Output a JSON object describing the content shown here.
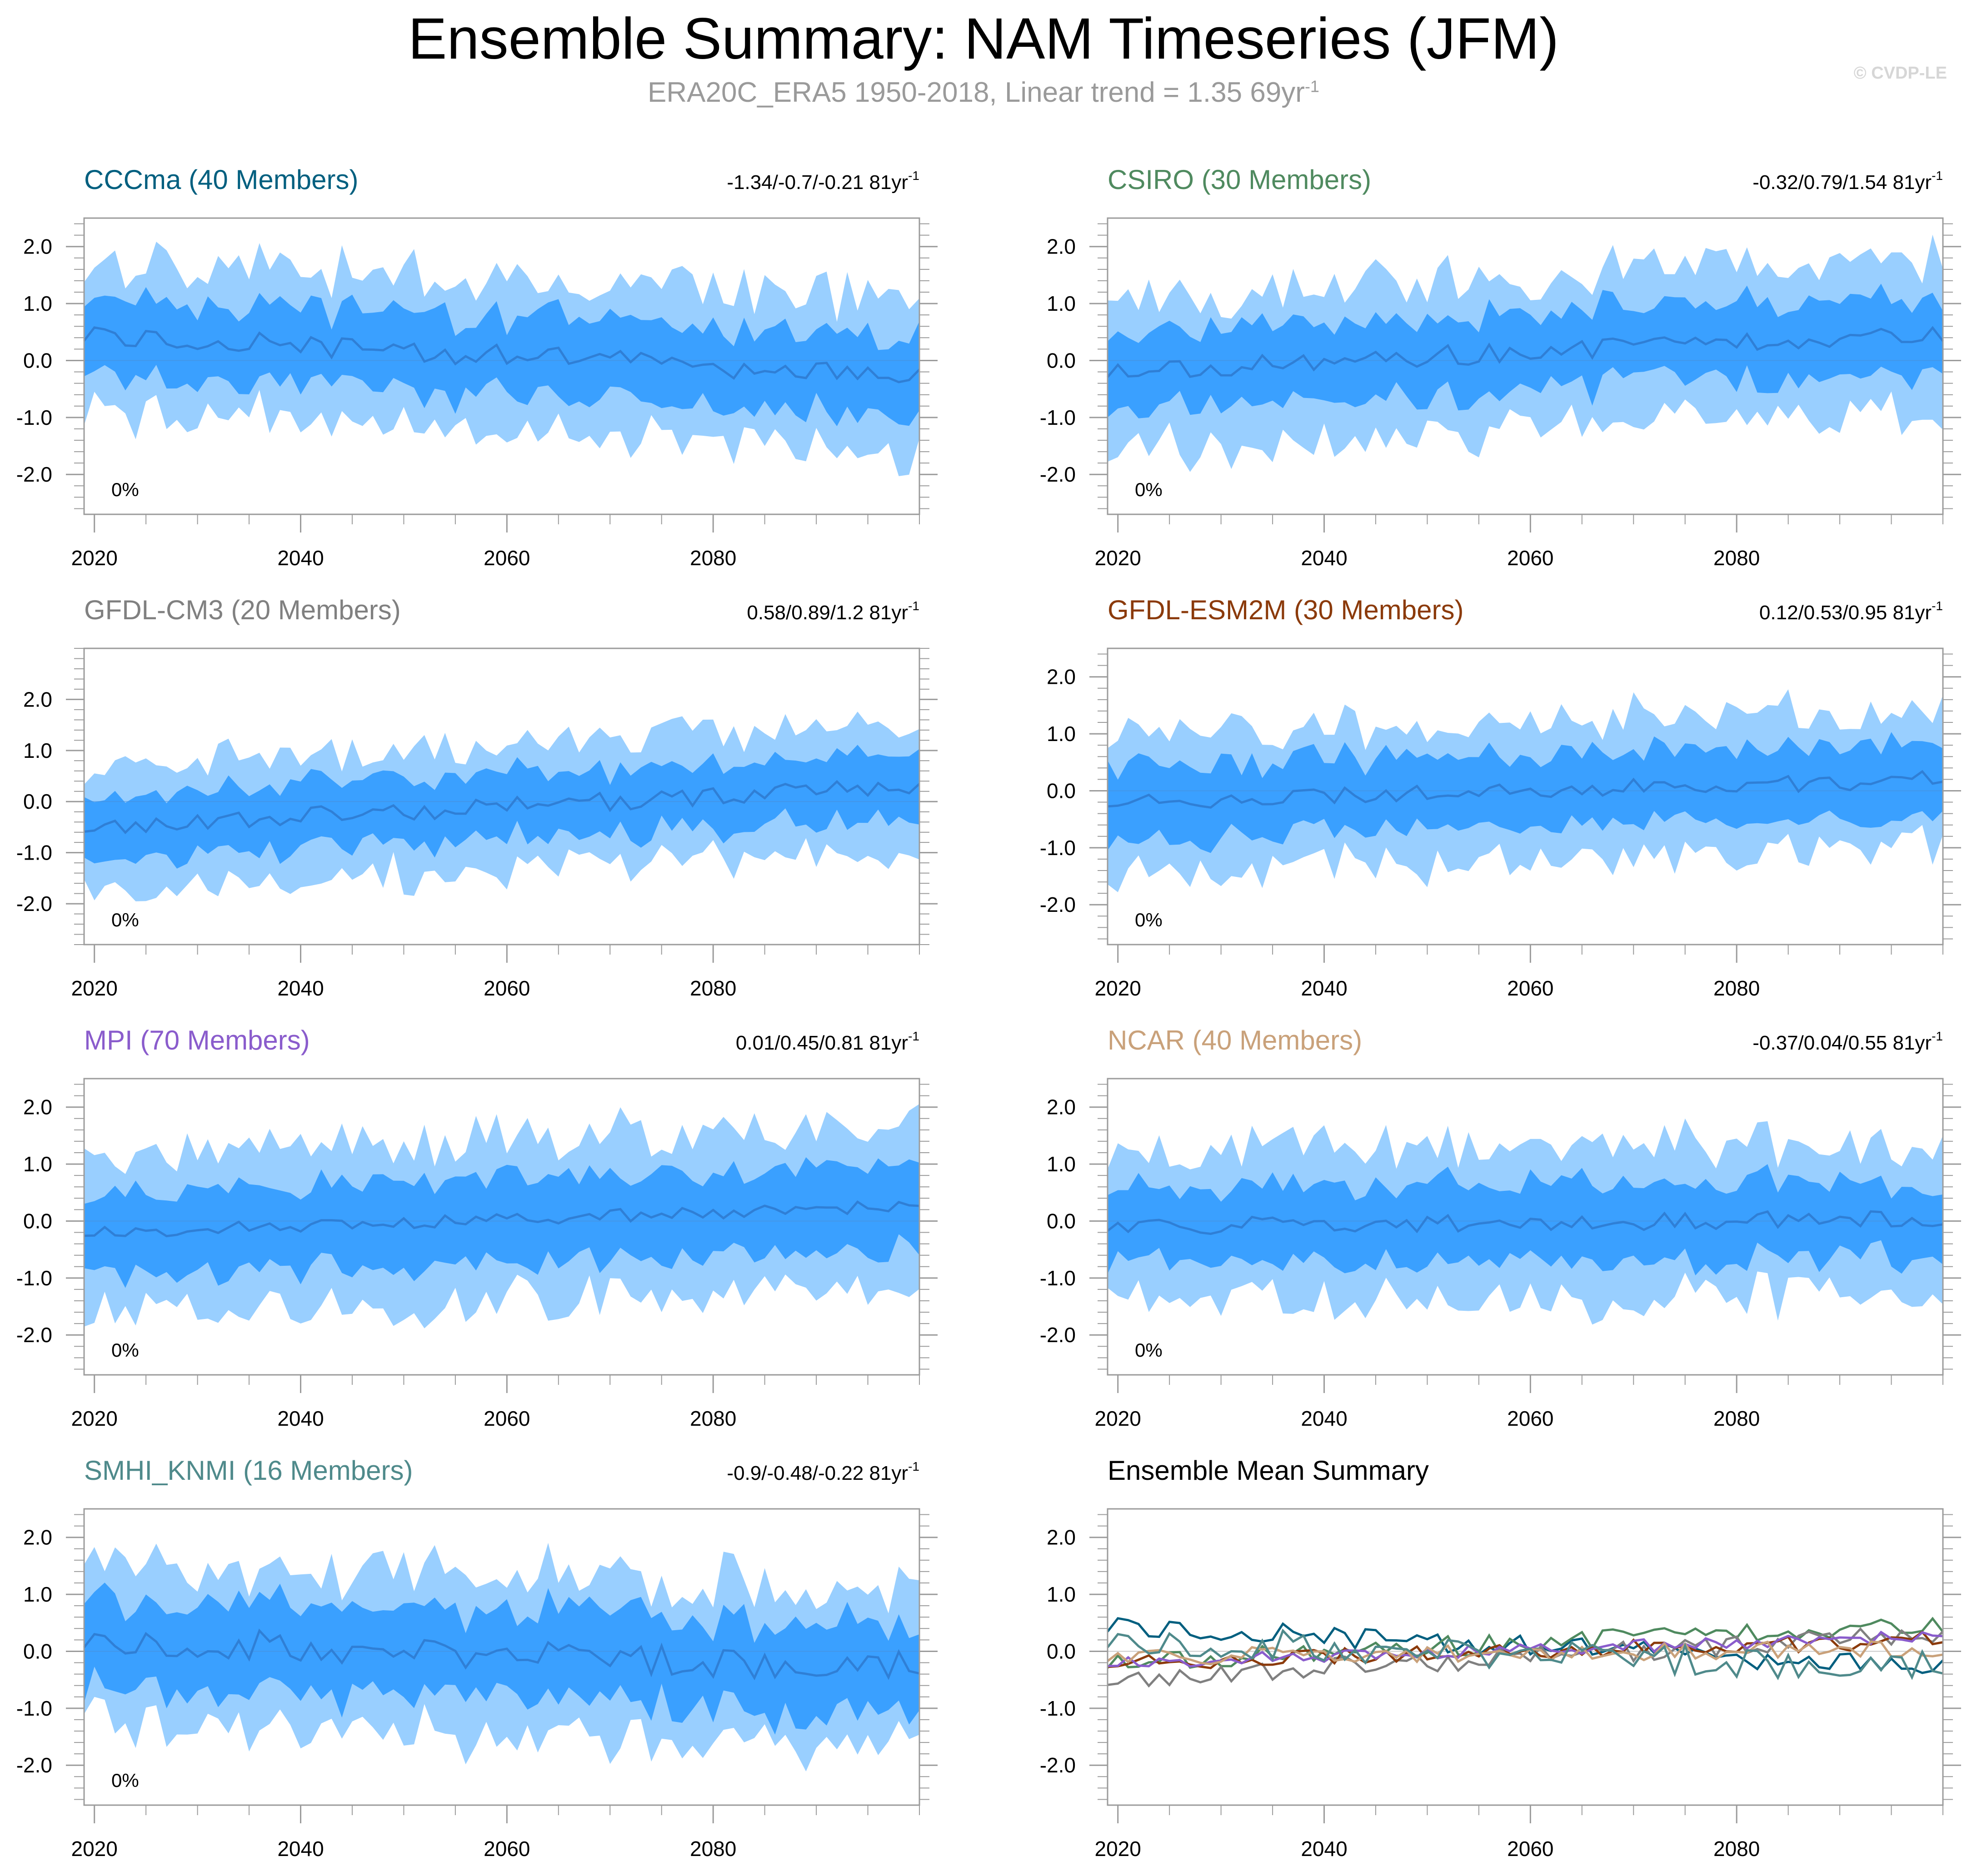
{
  "title": "Ensemble Summary: NAM Timeseries (JFM)",
  "subtitle": {
    "text": "ERA20C_ERA5 1950-2018, Linear trend = 1.35 69yr",
    "sup": "-1"
  },
  "watermark": "© CVDP-LE",
  "colors": {
    "outer_band": "#99cfff",
    "inner_band": "#3aa0ff",
    "mean_line": "#2f7fd6",
    "axis": "#9b9b9b"
  },
  "chart_data": [
    {
      "type": "area",
      "title": "CCCma (40 Members)",
      "title_color": "#005f7f",
      "trend_text": "-1.34/-0.7/-0.21 81yr",
      "trend_sup": "-1",
      "pct_label": "0%",
      "x_range": [
        2019,
        2100
      ],
      "ylim": [
        -2.7,
        2.5
      ],
      "yticks": [
        "2.0",
        "1.0",
        "0.0",
        "-1.0",
        "-2.0"
      ],
      "ytick_values": [
        2,
        1,
        0,
        -1,
        -2
      ],
      "xticks": [
        "2020",
        "2040",
        "2060",
        "2080"
      ],
      "xtick_values": [
        2020,
        2040,
        2060,
        2080
      ],
      "mean_start": 0.45,
      "mean_end": -0.3,
      "mean_noise": 0.2,
      "inner_half": 0.65,
      "outer_half": 1.3,
      "seed": 11
    },
    {
      "type": "area",
      "title": "CSIRO (30 Members)",
      "title_color": "#4f8a5f",
      "trend_text": "-0.32/0.79/1.54 81yr",
      "trend_sup": "-1",
      "pct_label": "0%",
      "x_range": [
        2019,
        2100
      ],
      "ylim": [
        -2.7,
        2.5
      ],
      "yticks": [
        "2.0",
        "1.0",
        "0.0",
        "-1.0",
        "-2.0"
      ],
      "ytick_values": [
        2,
        1,
        0,
        -1,
        -2
      ],
      "xticks": [
        "2020",
        "2040",
        "2060",
        "2080"
      ],
      "xtick_values": [
        2020,
        2040,
        2060,
        2080
      ],
      "mean_start": -0.2,
      "mean_end": 0.5,
      "mean_noise": 0.18,
      "inner_half": 0.65,
      "outer_half": 1.3,
      "seed": 23
    },
    {
      "type": "area",
      "title": "GFDL-CM3 (20 Members)",
      "title_color": "#808080",
      "trend_text": "0.58/0.89/1.2 81yr",
      "trend_sup": "-1",
      "pct_label": "0%",
      "x_range": [
        2019,
        2100
      ],
      "ylim": [
        -2.8,
        3.0
      ],
      "yticks": [
        "2.0",
        "1.0",
        "0.0",
        "-1.0",
        "-2.0"
      ],
      "ytick_values": [
        2,
        1,
        0,
        -1,
        -2
      ],
      "xticks": [
        "2020",
        "2040",
        "2060",
        "2080"
      ],
      "xtick_values": [
        2020,
        2040,
        2060,
        2080
      ],
      "mean_start": -0.5,
      "mean_end": 0.3,
      "mean_noise": 0.18,
      "inner_half": 0.6,
      "outer_half": 1.2,
      "seed": 37
    },
    {
      "type": "area",
      "title": "GFDL-ESM2M (30 Members)",
      "title_color": "#8b3a0a",
      "trend_text": "0.12/0.53/0.95 81yr",
      "trend_sup": "-1",
      "pct_label": "0%",
      "x_range": [
        2019,
        2100
      ],
      "ylim": [
        -2.7,
        2.5
      ],
      "yticks": [
        "2.0",
        "1.0",
        "0.0",
        "-1.0",
        "-2.0"
      ],
      "ytick_values": [
        2,
        1,
        0,
        -1,
        -2
      ],
      "xticks": [
        "2020",
        "2040",
        "2060",
        "2080"
      ],
      "xtick_values": [
        2020,
        2040,
        2060,
        2080
      ],
      "mean_start": -0.2,
      "mean_end": 0.2,
      "mean_noise": 0.15,
      "inner_half": 0.6,
      "outer_half": 1.2,
      "seed": 41
    },
    {
      "type": "area",
      "title": "MPI (70 Members)",
      "title_color": "#8a5ccc",
      "trend_text": "0.01/0.45/0.81 81yr",
      "trend_sup": "-1",
      "pct_label": "0%",
      "x_range": [
        2019,
        2100
      ],
      "ylim": [
        -2.7,
        2.5
      ],
      "yticks": [
        "2.0",
        "1.0",
        "0.0",
        "-1.0",
        "-2.0"
      ],
      "ytick_values": [
        2,
        1,
        0,
        -1,
        -2
      ],
      "xticks": [
        "2020",
        "2040",
        "2060",
        "2080"
      ],
      "xtick_values": [
        2020,
        2040,
        2060,
        2080
      ],
      "mean_start": -0.2,
      "mean_end": 0.25,
      "mean_noise": 0.12,
      "inner_half": 0.7,
      "outer_half": 1.4,
      "seed": 53
    },
    {
      "type": "area",
      "title": "NCAR (40 Members)",
      "title_color": "#c9a17a",
      "trend_text": "-0.37/0.04/0.55 81yr",
      "trend_sup": "-1",
      "pct_label": "0%",
      "x_range": [
        2019,
        2100
      ],
      "ylim": [
        -2.7,
        2.5
      ],
      "yticks": [
        "2.0",
        "1.0",
        "0.0",
        "-1.0",
        "-2.0"
      ],
      "ytick_values": [
        2,
        1,
        0,
        -1,
        -2
      ],
      "xticks": [
        "2020",
        "2040",
        "2060",
        "2080"
      ],
      "xtick_values": [
        2020,
        2040,
        2060,
        2080
      ],
      "mean_start": -0.1,
      "mean_end": 0.05,
      "mean_noise": 0.15,
      "inner_half": 0.65,
      "outer_half": 1.3,
      "seed": 67
    },
    {
      "type": "area",
      "title": "SMHI_KNMI (16 Members)",
      "title_color": "#4f8a8b",
      "trend_text": "-0.9/-0.48/-0.22 81yr",
      "trend_sup": "-1",
      "pct_label": "0%",
      "x_range": [
        2019,
        2100
      ],
      "ylim": [
        -2.7,
        2.5
      ],
      "yticks": [
        "2.0",
        "1.0",
        "0.0",
        "-1.0",
        "-2.0"
      ],
      "ytick_values": [
        2,
        1,
        0,
        -1,
        -2
      ],
      "xticks": [
        "2020",
        "2040",
        "2060",
        "2080"
      ],
      "xtick_values": [
        2020,
        2040,
        2060,
        2080
      ],
      "mean_start": 0.2,
      "mean_end": -0.3,
      "mean_noise": 0.28,
      "inner_half": 0.75,
      "outer_half": 1.35,
      "seed": 79
    },
    {
      "type": "line",
      "title": "Ensemble Mean Summary",
      "title_color": "#000000",
      "trend_text": "",
      "trend_sup": "",
      "pct_label": "",
      "x_range": [
        2019,
        2100
      ],
      "ylim": [
        -2.7,
        2.5
      ],
      "yticks": [
        "2.0",
        "1.0",
        "0.0",
        "-1.0",
        "-2.0"
      ],
      "ytick_values": [
        2,
        1,
        0,
        -1,
        -2
      ],
      "xticks": [
        "2020",
        "2040",
        "2060",
        "2080"
      ],
      "xtick_values": [
        2020,
        2040,
        2060,
        2080
      ],
      "series_colors": [
        "#005f7f",
        "#4f8a5f",
        "#808080",
        "#8b3a0a",
        "#8a5ccc",
        "#c9a17a",
        "#4f8a8b"
      ],
      "series_ref": [
        0,
        1,
        2,
        3,
        4,
        5,
        6
      ]
    }
  ]
}
